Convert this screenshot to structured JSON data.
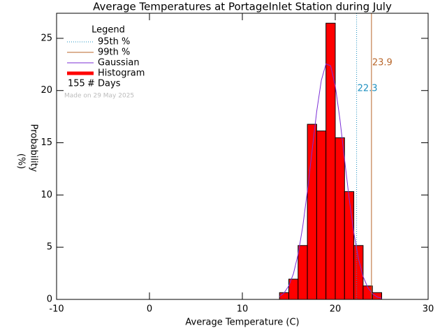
{
  "chart_data": {
    "type": "histogram",
    "title": "Average Temperatures at PortageInlet Station during July",
    "x_label": "Average Temperature (C)",
    "y_label": [
      "Probability",
      "(%)"
    ],
    "xlim": [
      -10,
      30
    ],
    "xticks": [
      -10,
      0,
      10,
      20,
      30
    ],
    "ylim": [
      0,
      27.4
    ],
    "yticks": [
      0,
      5,
      10,
      15,
      20,
      25
    ],
    "bins": [
      14,
      15,
      16,
      17,
      18,
      19,
      20,
      21,
      22,
      23,
      24,
      25
    ],
    "series": [
      {
        "name": "Histogram",
        "color": "#ff0000",
        "values": [
          0.65,
          1.94,
          5.16,
          16.77,
          16.13,
          26.45,
          15.48,
          10.32,
          5.16,
          1.29,
          0.65
        ]
      },
      {
        "name": "Gaussian",
        "color": "#7b2fd6",
        "x": [
          14,
          14.5,
          15,
          15.5,
          16,
          16.5,
          17,
          17.5,
          18,
          18.5,
          19,
          19.5,
          20,
          20.5,
          21,
          21.5,
          22,
          22.5,
          23,
          23.5,
          24,
          24.5,
          25
        ],
        "values": [
          0.28,
          0.63,
          1.3,
          2.47,
          4.32,
          6.97,
          10.37,
          14.2,
          17.98,
          20.97,
          22.55,
          22.37,
          20.46,
          17.26,
          13.43,
          9.64,
          6.38,
          3.89,
          2.19,
          1.14,
          0.54,
          0.24,
          0.1
        ]
      }
    ],
    "percentiles": [
      {
        "name": "95th %",
        "value": 22.3,
        "color": "#1e90c0"
      },
      {
        "name": "99th %",
        "value": 23.9,
        "color": "#b8662a"
      }
    ],
    "legend_title": "Legend",
    "days": 155,
    "days_label": "# Days",
    "note": "Made on 29 May 2025"
  }
}
